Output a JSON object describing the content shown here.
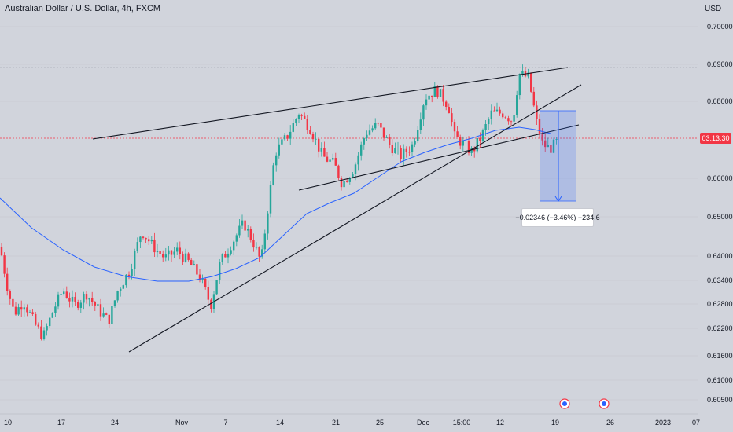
{
  "header": {
    "title": "Australian Dollar / U.S. Dollar, 4h, FXCM",
    "currency": "USD"
  },
  "chart_data": {
    "type": "candlestick",
    "symbol": "AUDUSD",
    "timeframe": "4h",
    "y_ticks": [
      "0.70000",
      "0.69000",
      "0.68000",
      "0.66000",
      "0.65000",
      "0.64000",
      "0.63400",
      "0.62800",
      "0.62200",
      "0.61600",
      "0.61000",
      "0.60500"
    ],
    "y_tick_values": [
      0.7,
      0.69,
      0.68,
      0.66,
      0.65,
      0.64,
      0.634,
      0.628,
      0.622,
      0.616,
      0.61,
      0.605
    ],
    "x_ticks": [
      "10",
      "17",
      "24",
      "Nov",
      "7",
      "14",
      "21",
      "25",
      "Dec",
      "15:00",
      "12",
      "19",
      "26",
      "2023",
      "07"
    ],
    "current_price_label": "03:13:30",
    "measure_label": "−0.02346 (−3.46%) −234.6",
    "colors": {
      "up": "#26a69a",
      "down": "#f23645",
      "ma": "#2962ff",
      "trendline": "#131722",
      "measure": "#2962ff"
    }
  }
}
